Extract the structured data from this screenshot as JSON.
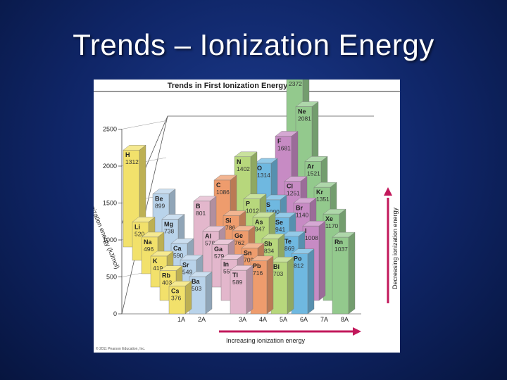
{
  "slide": {
    "title": "Trends – Ionization Energy"
  },
  "figure": {
    "copyright": "© 2011 Pearson Education, Inc.",
    "bottom_arrow_label": "Increasing ionization energy",
    "right_arrow_label": "Decreasing ionization energy"
  },
  "colors": {
    "1A": "#f2e16b",
    "2A": "#b9d3ea",
    "3A": "#e3b7cc",
    "4A": "#ee9c6d",
    "5A": "#b7d77c",
    "6A": "#6fb8e0",
    "7A": "#c78bc4",
    "8A": "#93c98d",
    "arrow": "#c2185b"
  },
  "chart_data": {
    "type": "bar",
    "subtype": "3d-bar-periodic-table",
    "title": "Trends in First Ionization Energy",
    "ylabel": "Ionization energy (kJ/mol)",
    "yticks": [
      0,
      500,
      1000,
      1500,
      2000,
      2500
    ],
    "ylim": [
      0,
      2500
    ],
    "categories": [
      "1A",
      "2A",
      "3A",
      "4A",
      "5A",
      "6A",
      "7A",
      "8A"
    ],
    "series": [
      {
        "group": "1A",
        "elements": [
          {
            "symbol": "H",
            "value": 1312
          },
          {
            "symbol": "Li",
            "value": 520
          },
          {
            "symbol": "Na",
            "value": 496
          },
          {
            "symbol": "K",
            "value": 419
          },
          {
            "symbol": "Rb",
            "value": 403
          },
          {
            "symbol": "Cs",
            "value": 376
          }
        ]
      },
      {
        "group": "2A",
        "elements": [
          {
            "symbol": "Be",
            "value": 899
          },
          {
            "symbol": "Mg",
            "value": 738
          },
          {
            "symbol": "Ca",
            "value": 590
          },
          {
            "symbol": "Sr",
            "value": 549
          },
          {
            "symbol": "Ba",
            "value": 503
          }
        ]
      },
      {
        "group": "3A",
        "elements": [
          {
            "symbol": "B",
            "value": 801
          },
          {
            "symbol": "Al",
            "value": 578
          },
          {
            "symbol": "Ga",
            "value": 579
          },
          {
            "symbol": "In",
            "value": 558
          },
          {
            "symbol": "Tl",
            "value": 589
          }
        ]
      },
      {
        "group": "4A",
        "elements": [
          {
            "symbol": "C",
            "value": 1086
          },
          {
            "symbol": "Si",
            "value": 786
          },
          {
            "symbol": "Ge",
            "value": 762
          },
          {
            "symbol": "Sn",
            "value": 709
          },
          {
            "symbol": "Pb",
            "value": 716
          }
        ]
      },
      {
        "group": "5A",
        "elements": [
          {
            "symbol": "N",
            "value": 1402
          },
          {
            "symbol": "P",
            "value": 1012
          },
          {
            "symbol": "As",
            "value": 947
          },
          {
            "symbol": "Sb",
            "value": 834
          },
          {
            "symbol": "Bi",
            "value": 703
          }
        ]
      },
      {
        "group": "6A",
        "elements": [
          {
            "symbol": "O",
            "value": 1314
          },
          {
            "symbol": "S",
            "value": 1000
          },
          {
            "symbol": "Se",
            "value": 941
          },
          {
            "symbol": "Te",
            "value": 869
          },
          {
            "symbol": "Po",
            "value": 812
          }
        ]
      },
      {
        "group": "7A",
        "elements": [
          {
            "symbol": "F",
            "value": 1681
          },
          {
            "symbol": "Cl",
            "value": 1251
          },
          {
            "symbol": "Br",
            "value": 1140
          },
          {
            "symbol": "I",
            "value": 1008
          }
        ]
      },
      {
        "group": "8A",
        "elements": [
          {
            "symbol": "He",
            "value": 2372
          },
          {
            "symbol": "Ne",
            "value": 2081
          },
          {
            "symbol": "Ar",
            "value": 1521
          },
          {
            "symbol": "Kr",
            "value": 1351
          },
          {
            "symbol": "Xe",
            "value": 1170
          },
          {
            "symbol": "Rn",
            "value": 1037
          }
        ]
      }
    ]
  }
}
